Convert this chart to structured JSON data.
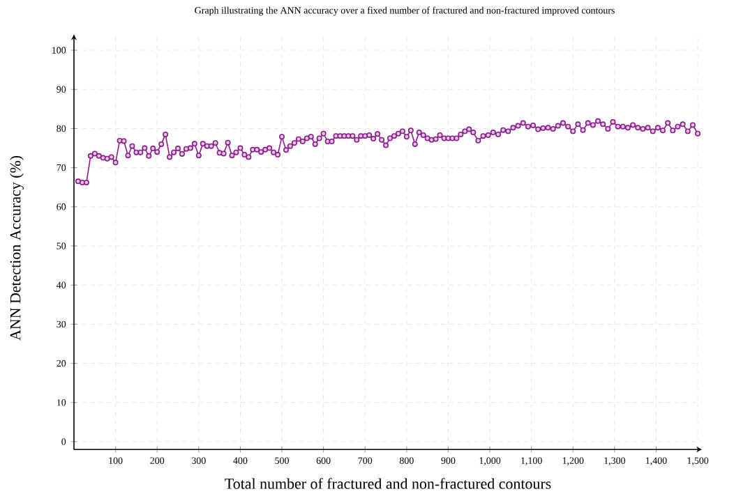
{
  "chart_data": {
    "type": "line",
    "title": "Graph illustrating the ANN accuracy over a fixed number of fractured and non-fractured improved contours",
    "xlabel": "Total number of fractured and non-fractured contours",
    "ylabel": "ANN Detection Accuracy (%)",
    "xlim": [
      0,
      1510
    ],
    "ylim": [
      -2,
      104
    ],
    "xticks": [
      100,
      200,
      300,
      400,
      500,
      600,
      700,
      800,
      900,
      {
        "value": 1000,
        "label": "1,000"
      },
      {
        "value": 1100,
        "label": "1,100"
      },
      {
        "value": 1200,
        "label": "1,200"
      },
      {
        "value": 1300,
        "label": "1,300"
      },
      {
        "value": 1400,
        "label": "1,400"
      },
      {
        "value": 1500,
        "label": "1,500"
      }
    ],
    "yticks": [
      0,
      10,
      20,
      30,
      40,
      50,
      60,
      70,
      80,
      90,
      100
    ],
    "grid": true,
    "marker": "circle",
    "series": [
      {
        "color": "#8b1a8b",
        "x": [
          10,
          20,
          30,
          40,
          50,
          60,
          70,
          80,
          90,
          100,
          110,
          120,
          130,
          140,
          150,
          160,
          170,
          180,
          190,
          200,
          210,
          220,
          230,
          240,
          250,
          260,
          270,
          280,
          290,
          300,
          310,
          320,
          330,
          340,
          350,
          360,
          370,
          380,
          390,
          400,
          410,
          420,
          430,
          440,
          450,
          460,
          470,
          480,
          490,
          500,
          510,
          520,
          530,
          540,
          550,
          560,
          570,
          580,
          590,
          600,
          610,
          620,
          630,
          640,
          650,
          660,
          670,
          680,
          690,
          700,
          710,
          720,
          730,
          740,
          750,
          760,
          770,
          780,
          790,
          800,
          810,
          820,
          830,
          840,
          850,
          860,
          870,
          880,
          890,
          900,
          910,
          920,
          930,
          940,
          950,
          960,
          972,
          984,
          996,
          1008,
          1020,
          1032,
          1044,
          1056,
          1068,
          1080,
          1092,
          1104,
          1116,
          1128,
          1140,
          1152,
          1164,
          1176,
          1188,
          1200,
          1212,
          1224,
          1236,
          1248,
          1260,
          1272,
          1284,
          1296,
          1308,
          1320,
          1332,
          1344,
          1356,
          1368,
          1380,
          1392,
          1404,
          1416,
          1428,
          1440,
          1452,
          1464,
          1476,
          1488,
          1500
        ],
        "values": [
          66.5,
          66.2,
          66.2,
          73,
          73.6,
          73,
          72.5,
          72.3,
          72.7,
          71.3,
          76.9,
          76.8,
          73.1,
          75.5,
          73.9,
          73.9,
          75,
          73,
          74.9,
          74,
          76,
          78.5,
          72.7,
          73.9,
          74.9,
          73.5,
          74.8,
          75,
          76.1,
          73.1,
          76.1,
          75.5,
          75.5,
          76.3,
          73.8,
          73.6,
          76.4,
          73.1,
          73.9,
          75,
          73.3,
          72.7,
          74.6,
          74.6,
          74,
          74.6,
          75,
          73.9,
          73.3,
          77.9,
          74.5,
          75.5,
          76.3,
          77.3,
          76.7,
          77.5,
          77.9,
          76,
          77.5,
          78.7,
          76.7,
          76.7,
          78.1,
          78.1,
          78.1,
          78.1,
          78.1,
          77.1,
          78.1,
          78.1,
          78.3,
          77.4,
          78.6,
          77.1,
          75.7,
          77.5,
          78.1,
          78.7,
          79.3,
          77.9,
          79.5,
          76,
          79,
          78.3,
          77.5,
          77.1,
          77.3,
          78.3,
          77.5,
          77.5,
          77.5,
          77.5,
          78.5,
          79.3,
          79.8,
          79,
          76.9,
          78.1,
          78.3,
          79,
          78.5,
          79.6,
          79.3,
          80.2,
          80.7,
          81.4,
          80.5,
          80.8,
          79.8,
          80.1,
          80.2,
          79.9,
          80.7,
          81.4,
          80.5,
          79.3,
          81.1,
          79.6,
          81.4,
          80.9,
          81.9,
          81.1,
          79.9,
          81.7,
          80.5,
          80.5,
          80.2,
          80.9,
          80.2,
          79.9,
          80.2,
          79.3,
          80.2,
          79.5,
          81.4,
          79.5,
          80.5,
          81.1,
          79.3,
          80.9,
          78.7
        ]
      }
    ]
  }
}
